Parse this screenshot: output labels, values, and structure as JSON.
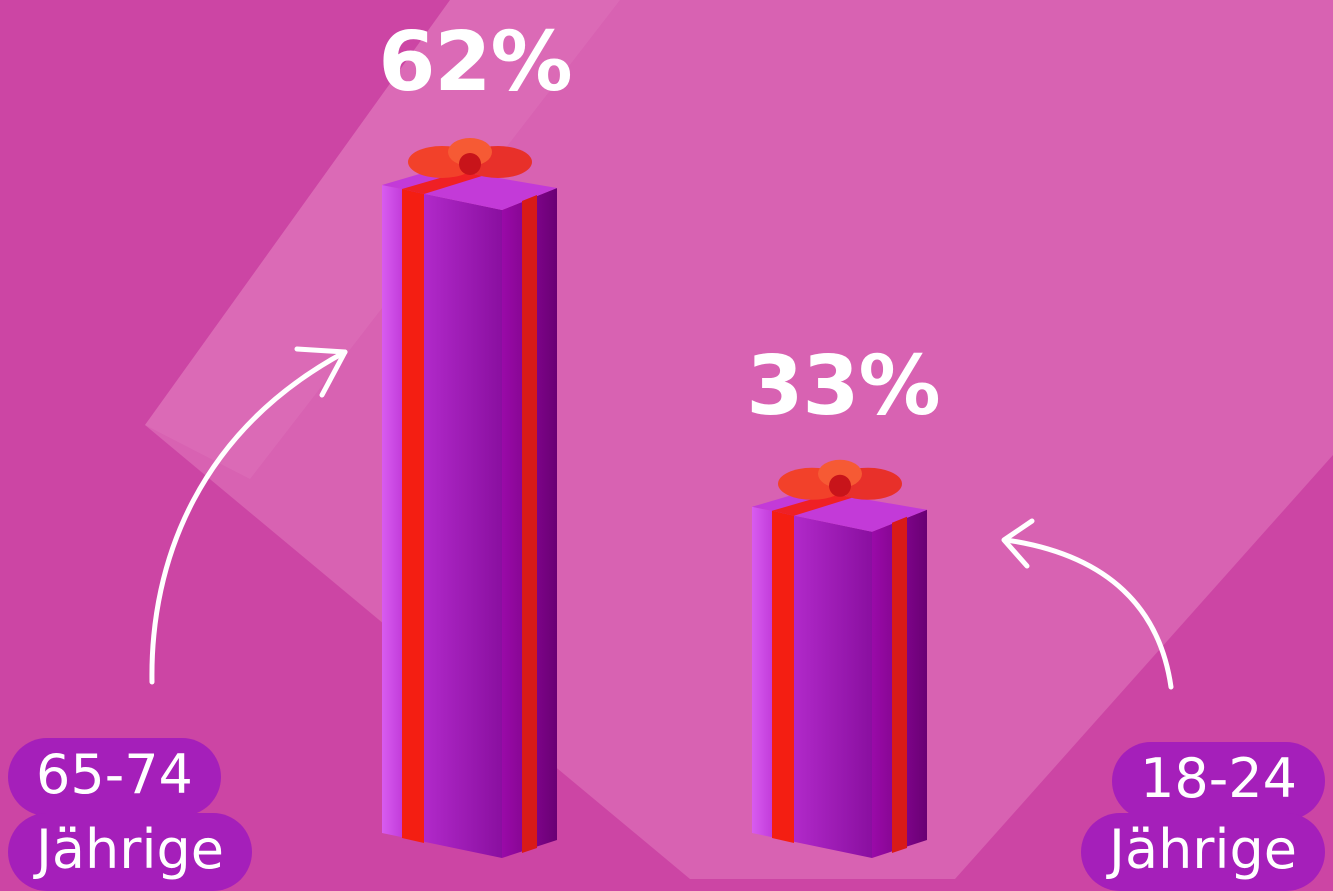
{
  "chart_data": {
    "type": "bar",
    "categories": [
      "65-74 Jährige",
      "18-24 Jährige"
    ],
    "values": [
      62,
      33
    ],
    "value_labels": [
      "62%",
      "33%"
    ],
    "ylim": [
      0,
      62
    ]
  },
  "labels": {
    "left_group": {
      "line1": "65-74",
      "line2": "Jährige"
    },
    "right_group": {
      "line1": "18-24",
      "line2": "Jährige"
    }
  },
  "colors": {
    "background": "#cc45a4",
    "background_light": "#d862b2",
    "box_purple_light": "#c33ad8",
    "box_purple_dark": "#6e0078",
    "ribbon_red": "#f41e12",
    "pill": "#a51fba",
    "text": "#ffffff"
  },
  "icons": [
    "gift-box-icon",
    "ribbon-bow-icon",
    "curved-arrow-icon"
  ]
}
